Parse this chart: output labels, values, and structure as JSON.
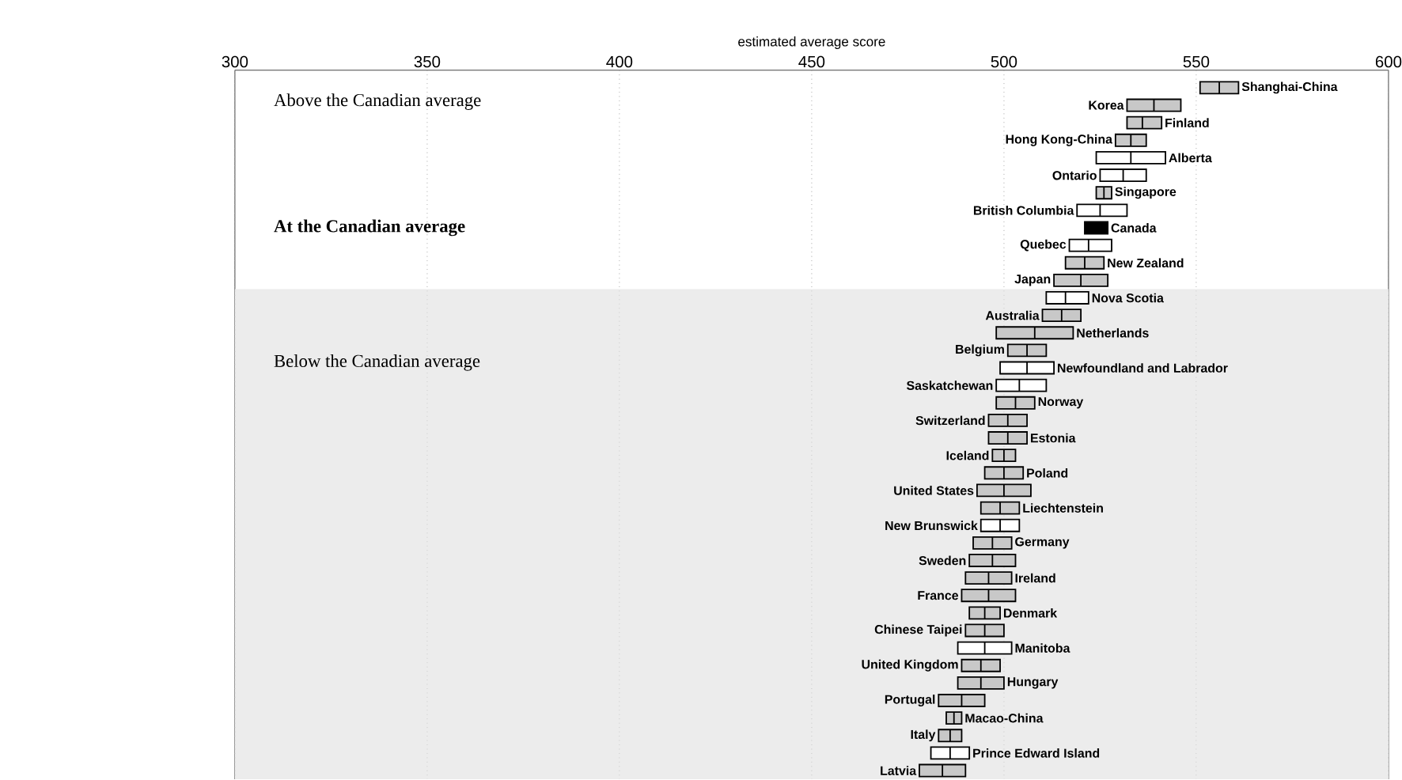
{
  "chart_data": {
    "type": "box",
    "orientation": "horizontal",
    "xlabel": "estimated average score",
    "xlim": [
      300,
      600
    ],
    "xticks": [
      300,
      350,
      400,
      450,
      500,
      550,
      600
    ],
    "grid": "x",
    "categories": [
      "Shanghai-China",
      "Korea",
      "Finland",
      "Hong Kong-China",
      "Alberta",
      "Ontario",
      "Singapore",
      "British Columbia",
      "Canada",
      "Quebec",
      "New Zealand",
      "Japan",
      "Nova Scotia",
      "Australia",
      "Netherlands",
      "Belgium",
      "Newfoundland and Labrador",
      "Saskatchewan",
      "Norway",
      "Switzerland",
      "Estonia",
      "Iceland",
      "Poland",
      "United States",
      "Liechtenstein",
      "New Brunswick",
      "Germany",
      "Sweden",
      "Ireland",
      "France",
      "Denmark",
      "Chinese Taipei",
      "Manitoba",
      "United Kingdom",
      "Hungary",
      "Portugal",
      "Macao-China",
      "Italy",
      "Prince Edward Island",
      "Latvia"
    ],
    "boxes": [
      {
        "low": 551,
        "q1": 551,
        "median": 556,
        "q3": 561,
        "high": 561
      },
      {
        "low": 532,
        "q1": 532,
        "median": 539,
        "q3": 546,
        "high": 546
      },
      {
        "low": 532,
        "q1": 532,
        "median": 536,
        "q3": 541,
        "high": 541
      },
      {
        "low": 529,
        "q1": 529,
        "median": 533,
        "q3": 537,
        "high": 537
      },
      {
        "low": 524,
        "q1": 524,
        "median": 533,
        "q3": 542,
        "high": 542
      },
      {
        "low": 525,
        "q1": 525,
        "median": 531,
        "q3": 537,
        "high": 537
      },
      {
        "low": 524,
        "q1": 524,
        "median": 526,
        "q3": 528,
        "high": 528
      },
      {
        "low": 519,
        "q1": 519,
        "median": 525,
        "q3": 532,
        "high": 532
      },
      {
        "low": 521,
        "q1": 521,
        "median": 524,
        "q3": 527,
        "high": 527
      },
      {
        "low": 517,
        "q1": 517,
        "median": 522,
        "q3": 528,
        "high": 528
      },
      {
        "low": 516,
        "q1": 516,
        "median": 521,
        "q3": 526,
        "high": 526
      },
      {
        "low": 513,
        "q1": 513,
        "median": 520,
        "q3": 527,
        "high": 527
      },
      {
        "low": 511,
        "q1": 511,
        "median": 516,
        "q3": 522,
        "high": 522
      },
      {
        "low": 510,
        "q1": 510,
        "median": 515,
        "q3": 520,
        "high": 520
      },
      {
        "low": 498,
        "q1": 498,
        "median": 508,
        "q3": 518,
        "high": 518
      },
      {
        "low": 501,
        "q1": 501,
        "median": 506,
        "q3": 511,
        "high": 511
      },
      {
        "low": 499,
        "q1": 499,
        "median": 506,
        "q3": 513,
        "high": 513
      },
      {
        "low": 498,
        "q1": 498,
        "median": 504,
        "q3": 511,
        "high": 511
      },
      {
        "low": 498,
        "q1": 498,
        "median": 503,
        "q3": 508,
        "high": 508
      },
      {
        "low": 496,
        "q1": 496,
        "median": 501,
        "q3": 506,
        "high": 506
      },
      {
        "low": 496,
        "q1": 496,
        "median": 501,
        "q3": 506,
        "high": 506
      },
      {
        "low": 497,
        "q1": 497,
        "median": 500,
        "q3": 503,
        "high": 503
      },
      {
        "low": 495,
        "q1": 495,
        "median": 500,
        "q3": 505,
        "high": 505
      },
      {
        "low": 493,
        "q1": 493,
        "median": 500,
        "q3": 507,
        "high": 507
      },
      {
        "low": 494,
        "q1": 494,
        "median": 499,
        "q3": 504,
        "high": 504
      },
      {
        "low": 494,
        "q1": 494,
        "median": 499,
        "q3": 504,
        "high": 504
      },
      {
        "low": 492,
        "q1": 492,
        "median": 497,
        "q3": 502,
        "high": 502
      },
      {
        "low": 491,
        "q1": 491,
        "median": 497,
        "q3": 503,
        "high": 503
      },
      {
        "low": 490,
        "q1": 490,
        "median": 496,
        "q3": 502,
        "high": 502
      },
      {
        "low": 489,
        "q1": 489,
        "median": 496,
        "q3": 503,
        "high": 503
      },
      {
        "low": 491,
        "q1": 491,
        "median": 495,
        "q3": 499,
        "high": 499
      },
      {
        "low": 490,
        "q1": 490,
        "median": 495,
        "q3": 500,
        "high": 500
      },
      {
        "low": 488,
        "q1": 488,
        "median": 495,
        "q3": 502,
        "high": 502
      },
      {
        "low": 489,
        "q1": 489,
        "median": 494,
        "q3": 499,
        "high": 499
      },
      {
        "low": 488,
        "q1": 488,
        "median": 494,
        "q3": 500,
        "high": 500
      },
      {
        "low": 483,
        "q1": 483,
        "median": 489,
        "q3": 495,
        "high": 495
      },
      {
        "low": 485,
        "q1": 485,
        "median": 487,
        "q3": 489,
        "high": 489
      },
      {
        "low": 483,
        "q1": 483,
        "median": 486,
        "q3": 489,
        "high": 489
      },
      {
        "low": 481,
        "q1": 481,
        "median": 486,
        "q3": 491,
        "high": 491
      },
      {
        "low": 478,
        "q1": 478,
        "median": 484,
        "q3": 490,
        "high": 490
      }
    ],
    "colors": [
      "#c8c8c8",
      "#c8c8c8",
      "#c8c8c8",
      "#c8c8c8",
      "#ffffff",
      "#ffffff",
      "#c8c8c8",
      "#ffffff",
      "#000000",
      "#ffffff",
      "#c8c8c8",
      "#c8c8c8",
      "#ffffff",
      "#c8c8c8",
      "#c8c8c8",
      "#c8c8c8",
      "#ffffff",
      "#ffffff",
      "#c8c8c8",
      "#c8c8c8",
      "#c8c8c8",
      "#c8c8c8",
      "#c8c8c8",
      "#c8c8c8",
      "#c8c8c8",
      "#ffffff",
      "#c8c8c8",
      "#c8c8c8",
      "#c8c8c8",
      "#c8c8c8",
      "#c8c8c8",
      "#c8c8c8",
      "#ffffff",
      "#c8c8c8",
      "#c8c8c8",
      "#c8c8c8",
      "#c8c8c8",
      "#c8c8c8",
      "#ffffff",
      "#c8c8c8"
    ],
    "bands": [
      {
        "axis": "y",
        "from": "Nova Scotia",
        "to": "Latvia",
        "color": "#ececec"
      }
    ],
    "annotations": [
      "Above the Canadian average",
      "At the Canadian average",
      "Below the Canadian average"
    ]
  }
}
